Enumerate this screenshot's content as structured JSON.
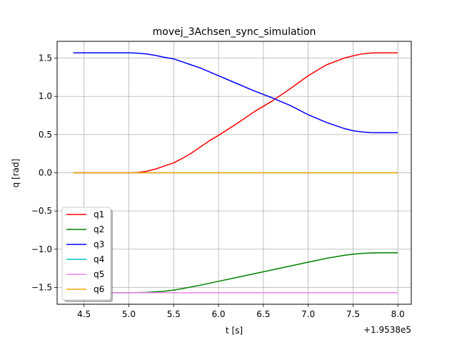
{
  "chart_data": {
    "type": "line",
    "title": "movej_3Achsen_sync_simulation",
    "xlabel": "t [s]",
    "ylabel": "q [rad]",
    "x_offset_text": "+1.9538e5",
    "xlim": [
      4.2,
      8.15
    ],
    "ylim": [
      -1.72,
      1.72
    ],
    "xticks": [
      4.5,
      5.0,
      5.5,
      6.0,
      6.5,
      7.0,
      7.5,
      8.0
    ],
    "xtick_labels": [
      "4.5",
      "5.0",
      "5.5",
      "6.0",
      "6.5",
      "7.0",
      "7.5",
      "8.0"
    ],
    "yticks": [
      -1.5,
      -1.0,
      -0.5,
      0.0,
      0.5,
      1.0,
      1.5
    ],
    "ytick_labels": [
      "−1.5",
      "−1.0",
      "−0.5",
      "0.0",
      "0.5",
      "1.0",
      "1.5"
    ],
    "grid": true,
    "legend_position": "lower-left",
    "series": [
      {
        "name": "q1",
        "color": "#ff0000",
        "x": [
          4.38,
          4.6,
          4.8,
          5.0,
          5.1,
          5.2,
          5.3,
          5.4,
          5.5,
          5.6,
          5.7,
          5.8,
          5.9,
          6.0,
          6.2,
          6.4,
          6.6,
          6.8,
          7.0,
          7.2,
          7.4,
          7.5,
          7.6,
          7.7,
          7.8,
          7.9,
          8.0
        ],
        "y": [
          0.0,
          0.0,
          0.0,
          0.0,
          0.005,
          0.02,
          0.05,
          0.09,
          0.13,
          0.19,
          0.26,
          0.34,
          0.42,
          0.49,
          0.64,
          0.8,
          0.94,
          1.1,
          1.27,
          1.41,
          1.5,
          1.53,
          1.555,
          1.567,
          1.57,
          1.57,
          1.57
        ]
      },
      {
        "name": "q2",
        "color": "#008000",
        "x": [
          4.38,
          4.6,
          4.8,
          5.0,
          5.2,
          5.4,
          5.5,
          5.6,
          5.8,
          6.0,
          6.2,
          6.4,
          6.6,
          6.8,
          7.0,
          7.2,
          7.4,
          7.5,
          7.6,
          7.7,
          7.8,
          7.9,
          8.0
        ],
        "y": [
          -1.57,
          -1.57,
          -1.57,
          -1.57,
          -1.565,
          -1.55,
          -1.535,
          -1.515,
          -1.47,
          -1.42,
          -1.37,
          -1.32,
          -1.27,
          -1.22,
          -1.17,
          -1.12,
          -1.08,
          -1.065,
          -1.055,
          -1.049,
          -1.047,
          -1.047,
          -1.047
        ]
      },
      {
        "name": "q3",
        "color": "#0000ff",
        "x": [
          4.38,
          4.6,
          4.8,
          5.0,
          5.1,
          5.2,
          5.3,
          5.4,
          5.5,
          5.6,
          5.7,
          5.8,
          5.9,
          6.0,
          6.2,
          6.4,
          6.6,
          6.8,
          7.0,
          7.2,
          7.4,
          7.5,
          7.6,
          7.7,
          7.8,
          7.9,
          8.0
        ],
        "y": [
          1.57,
          1.57,
          1.57,
          1.57,
          1.565,
          1.555,
          1.535,
          1.51,
          1.49,
          1.45,
          1.41,
          1.37,
          1.32,
          1.27,
          1.17,
          1.07,
          0.98,
          0.88,
          0.76,
          0.66,
          0.58,
          0.55,
          0.535,
          0.526,
          0.524,
          0.524,
          0.524
        ]
      },
      {
        "name": "q4",
        "color": "#00bfbf",
        "x": [
          4.38,
          8.0
        ],
        "y": [
          0.0,
          0.0
        ]
      },
      {
        "name": "q5",
        "color": "#ee82ee",
        "x": [
          4.38,
          8.0
        ],
        "y": [
          -1.57,
          -1.57
        ]
      },
      {
        "name": "q6",
        "color": "#ffa500",
        "x": [
          4.38,
          8.0
        ],
        "y": [
          0.0,
          0.0
        ]
      }
    ]
  }
}
